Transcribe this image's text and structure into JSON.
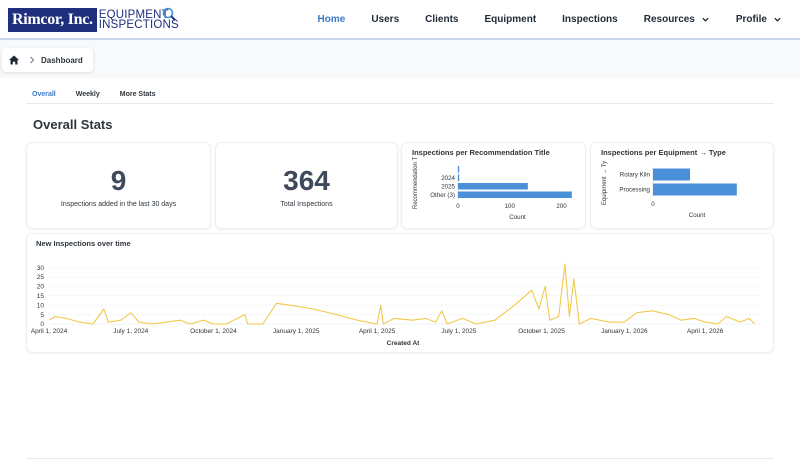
{
  "brand": {
    "name_box": "Rimcor, Inc.",
    "line1": "EQUIPMENT",
    "line2": "INSPECTIONS",
    "color": "#1f2f7d"
  },
  "nav": {
    "items": [
      {
        "label": "Home",
        "active": true
      },
      {
        "label": "Users"
      },
      {
        "label": "Clients"
      },
      {
        "label": "Equipment"
      },
      {
        "label": "Inspections"
      },
      {
        "label": "Resources",
        "dropdown": true
      },
      {
        "label": "Profile",
        "dropdown": true
      }
    ],
    "active_color": "#3f7ac6"
  },
  "breadcrumb": {
    "home_icon": "home-icon",
    "current": "Dashboard"
  },
  "tabs": [
    {
      "label": "Overall",
      "active": true
    },
    {
      "label": "Weekly"
    },
    {
      "label": "More Stats"
    }
  ],
  "section_title": "Overall Stats",
  "stats": {
    "recent": {
      "value": "9",
      "label": "Inspections added in the last 30 days"
    },
    "total": {
      "value": "364",
      "label": "Total Inspections"
    }
  },
  "chart_data": [
    {
      "type": "bar",
      "orientation": "horizontal",
      "title": "Inspections per Recommendation Title",
      "ylabel": "Recommendation T",
      "xlabel": "Count",
      "categories": [
        "",
        "2024",
        "2025",
        "Other (3)"
      ],
      "values": [
        2,
        1,
        135,
        220
      ],
      "xlim": [
        0,
        230
      ],
      "xticks": [
        0,
        100,
        200
      ],
      "color": "#4a90d9"
    },
    {
      "type": "bar",
      "orientation": "horizontal",
      "title": "Inspections per Equipment → Type",
      "ylabel": "Equipment → Ty",
      "xlabel": "Count",
      "categories": [
        "Rotary Kiln",
        "Processing"
      ],
      "values": [
        95,
        215
      ],
      "xticks": [
        0
      ],
      "color": "#4a90d9"
    },
    {
      "type": "line",
      "title": "New Inspections over time",
      "xlabel": "Created At",
      "ylim": [
        0,
        33
      ],
      "yticks": [
        0,
        5,
        10,
        15,
        20,
        25,
        30
      ],
      "x_start": "2024-04-01",
      "xtick_labels": [
        "April 1, 2024",
        "July 1, 2024",
        "October 1, 2024",
        "January 1, 2025",
        "April 1, 2025",
        "July 1, 2025",
        "October 1, 2025",
        "January 1, 2026",
        "April 1, 2026"
      ],
      "xtick_dates": [
        "2024-04-01",
        "2024-07-01",
        "2024-10-01",
        "2025-01-01",
        "2025-04-01",
        "2025-07-01",
        "2025-10-01",
        "2026-01-01",
        "2026-04-01"
      ],
      "x_end": "2026-06-01",
      "color": "#f2c94c",
      "points": [
        [
          "2024-04-01",
          2
        ],
        [
          "2024-04-08",
          4
        ],
        [
          "2024-04-20",
          3
        ],
        [
          "2024-05-05",
          1
        ],
        [
          "2024-05-20",
          0
        ],
        [
          "2024-06-01",
          8
        ],
        [
          "2024-06-06",
          1
        ],
        [
          "2024-06-20",
          2
        ],
        [
          "2024-07-01",
          6
        ],
        [
          "2024-07-10",
          1
        ],
        [
          "2024-07-25",
          0
        ],
        [
          "2024-08-10",
          1
        ],
        [
          "2024-08-25",
          2
        ],
        [
          "2024-09-05",
          0
        ],
        [
          "2024-09-20",
          2
        ],
        [
          "2024-10-01",
          0
        ],
        [
          "2024-10-15",
          0
        ],
        [
          "2024-11-05",
          5
        ],
        [
          "2024-11-08",
          0
        ],
        [
          "2024-11-25",
          0
        ],
        [
          "2024-12-10",
          11
        ],
        [
          "2024-12-25",
          10
        ],
        [
          "2025-01-20",
          8
        ],
        [
          "2025-02-15",
          5
        ],
        [
          "2025-03-10",
          2
        ],
        [
          "2025-04-01",
          0
        ],
        [
          "2025-04-05",
          10
        ],
        [
          "2025-04-08",
          0
        ],
        [
          "2025-04-20",
          3
        ],
        [
          "2025-05-10",
          2
        ],
        [
          "2025-05-25",
          3
        ],
        [
          "2025-06-05",
          1
        ],
        [
          "2025-06-12",
          7
        ],
        [
          "2025-06-18",
          0
        ],
        [
          "2025-07-05",
          3
        ],
        [
          "2025-07-20",
          0
        ],
        [
          "2025-08-10",
          2
        ],
        [
          "2025-09-01",
          10
        ],
        [
          "2025-09-20",
          18
        ],
        [
          "2025-09-28",
          8
        ],
        [
          "2025-10-05",
          20
        ],
        [
          "2025-10-10",
          2
        ],
        [
          "2025-10-20",
          4
        ],
        [
          "2025-10-27",
          32
        ],
        [
          "2025-11-01",
          4
        ],
        [
          "2025-11-06",
          24
        ],
        [
          "2025-11-12",
          0
        ],
        [
          "2025-11-25",
          3
        ],
        [
          "2025-12-15",
          1
        ],
        [
          "2026-01-01",
          1
        ],
        [
          "2026-01-15",
          6
        ],
        [
          "2026-02-01",
          7
        ],
        [
          "2026-02-20",
          5
        ],
        [
          "2026-03-05",
          2
        ],
        [
          "2026-03-20",
          3
        ],
        [
          "2026-04-01",
          1
        ],
        [
          "2026-04-15",
          0
        ],
        [
          "2026-04-25",
          4
        ],
        [
          "2026-05-10",
          1
        ],
        [
          "2026-05-20",
          3
        ],
        [
          "2026-05-26",
          0
        ]
      ]
    }
  ]
}
